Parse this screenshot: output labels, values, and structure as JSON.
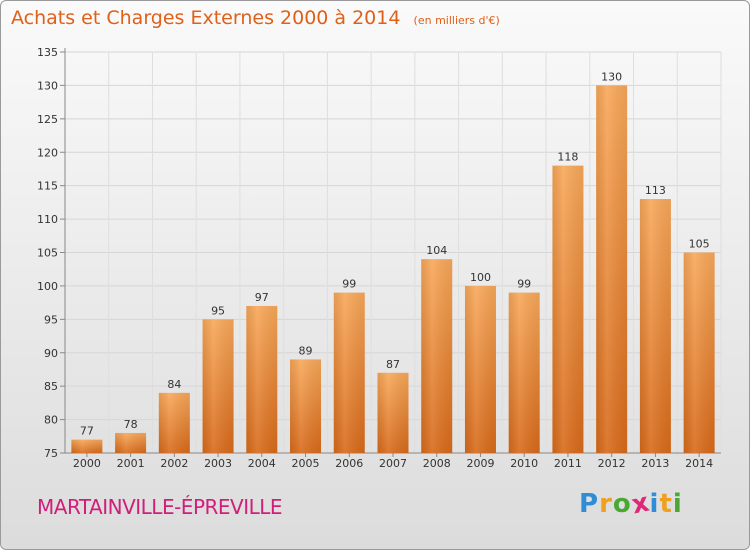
{
  "title": "Achats et Charges Externes 2000 à 2014",
  "subtitle": "(en milliers d'€)",
  "commune": "MARTAINVILLE-ÉPREVILLE",
  "logo": {
    "letters": [
      "P",
      "r",
      "o",
      "x",
      "i",
      "t",
      "i"
    ],
    "colors": [
      "#2f8dd6",
      "#f0a020",
      "#4aa832",
      "#e02878",
      "#2f8dd6",
      "#f0a020",
      "#4aa832"
    ]
  },
  "colors": {
    "bar_top": "#f8a85a",
    "bar_bottom": "#d86a1a",
    "title": "#e0601a",
    "commune": "#d01e7a"
  },
  "chart_data": {
    "type": "bar",
    "categories": [
      "2000",
      "2001",
      "2002",
      "2003",
      "2004",
      "2005",
      "2006",
      "2007",
      "2008",
      "2009",
      "2010",
      "2011",
      "2012",
      "2013",
      "2014"
    ],
    "values": [
      77,
      78,
      84,
      95,
      97,
      89,
      99,
      87,
      104,
      100,
      99,
      118,
      130,
      113,
      105
    ],
    "title": "Achats et Charges Externes 2000 à 2014",
    "xlabel": "",
    "ylabel": "",
    "ylim": [
      75,
      135
    ],
    "yticks": [
      75,
      80,
      85,
      90,
      95,
      100,
      105,
      110,
      115,
      120,
      125,
      130,
      135
    ],
    "grid": true
  }
}
